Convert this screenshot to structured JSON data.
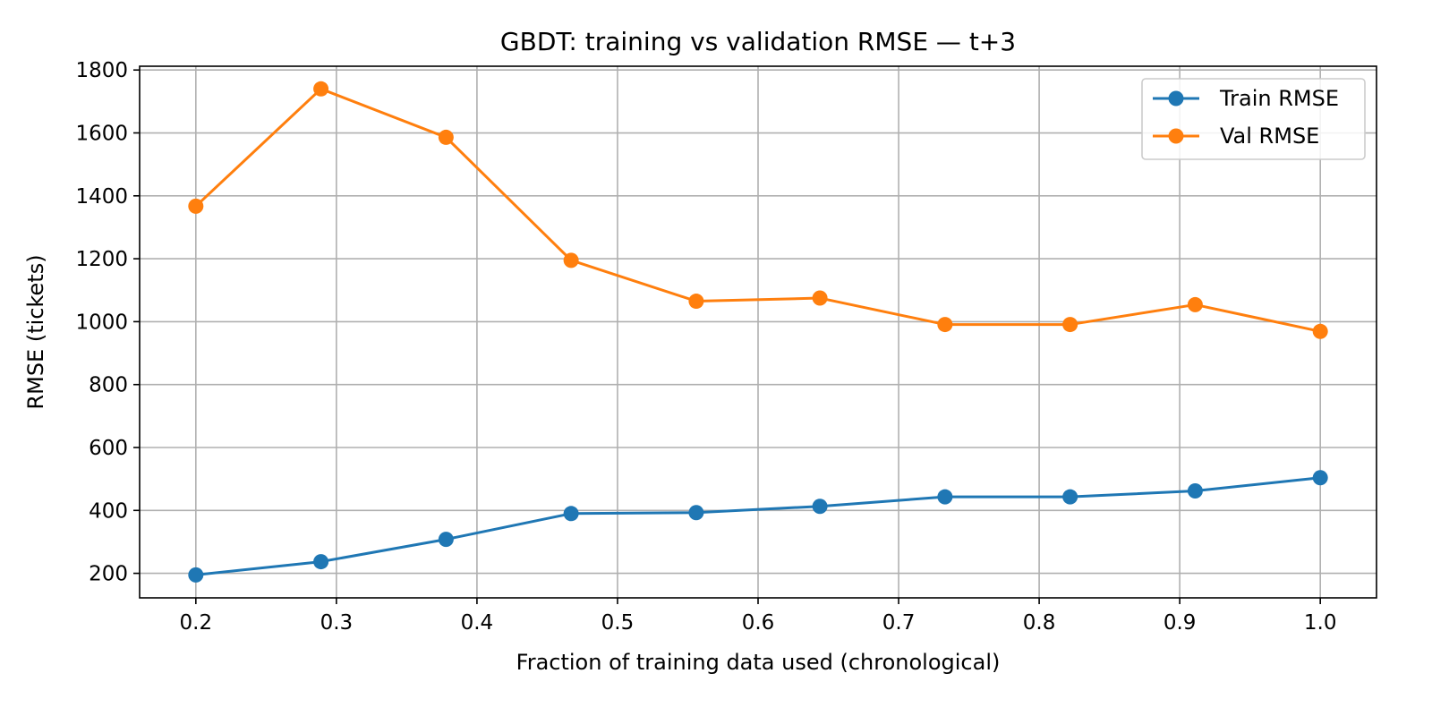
{
  "chart_data": {
    "type": "line",
    "title": "GBDT: training vs validation RMSE — t+3",
    "xlabel": "Fraction of training data used (chronological)",
    "ylabel": "RMSE (tickets)",
    "x": [
      0.2,
      0.289,
      0.378,
      0.467,
      0.556,
      0.644,
      0.733,
      0.822,
      0.911,
      1.0
    ],
    "series": [
      {
        "name": "Train RMSE",
        "color": "#1f77b4",
        "values": [
          195,
          237,
          308,
          390,
          393,
          413,
          443,
          443,
          462,
          504
        ]
      },
      {
        "name": "Val RMSE",
        "color": "#ff7f0e",
        "values": [
          1367,
          1740,
          1586,
          1195,
          1065,
          1075,
          991,
          991,
          1054,
          969
        ]
      }
    ],
    "xlim": [
      0.16,
      1.04
    ],
    "ylim": [
      122,
      1812
    ],
    "xticks": [
      "0.2",
      "0.3",
      "0.4",
      "0.5",
      "0.6",
      "0.7",
      "0.8",
      "0.9",
      "1.0"
    ],
    "yticks": [
      "200",
      "400",
      "600",
      "800",
      "1000",
      "1200",
      "1400",
      "1600",
      "1800"
    ],
    "grid": true,
    "legend_position": "top-right"
  }
}
